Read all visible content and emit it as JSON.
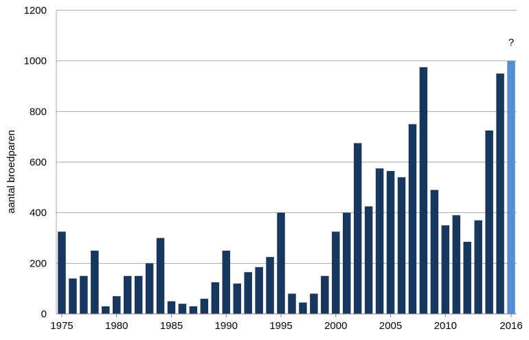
{
  "chart_data": {
    "type": "bar",
    "ylabel": "aantal broedparen",
    "xlabel": "",
    "ylim": [
      0,
      1200
    ],
    "y_ticks": [
      "0",
      "200",
      "400",
      "600",
      "800",
      "1000",
      "1200"
    ],
    "x_tick_labels": [
      "1975",
      "1980",
      "1985",
      "1990",
      "1995",
      "2000",
      "2005",
      "2010",
      "2016"
    ],
    "grid": true,
    "categories": [
      "1975",
      "1976",
      "1977",
      "1978",
      "1979",
      "1980",
      "1981",
      "1982",
      "1983",
      "1984",
      "1985",
      "1986",
      "1987",
      "1988",
      "1989",
      "1990",
      "1991",
      "1992",
      "1993",
      "1994",
      "1995",
      "1996",
      "1997",
      "1998",
      "1999",
      "2000",
      "2001",
      "2002",
      "2003",
      "2004",
      "2005",
      "2006",
      "2007",
      "2008",
      "2009",
      "2010",
      "2011",
      "2012",
      "2013",
      "2014",
      "2015",
      "2016"
    ],
    "values": [
      325,
      140,
      150,
      250,
      30,
      70,
      150,
      150,
      200,
      300,
      50,
      40,
      30,
      60,
      125,
      250,
      120,
      165,
      185,
      225,
      400,
      80,
      45,
      80,
      150,
      325,
      400,
      675,
      425,
      575,
      565,
      540,
      750,
      975,
      490,
      350,
      390,
      285,
      370,
      725,
      950,
      1000
    ],
    "highlight": {
      "category": "2016",
      "annotation": "?"
    },
    "colors": {
      "bar": "#17375e",
      "highlight_bar": "#558ed5",
      "grid": "#a6a6a6"
    }
  }
}
